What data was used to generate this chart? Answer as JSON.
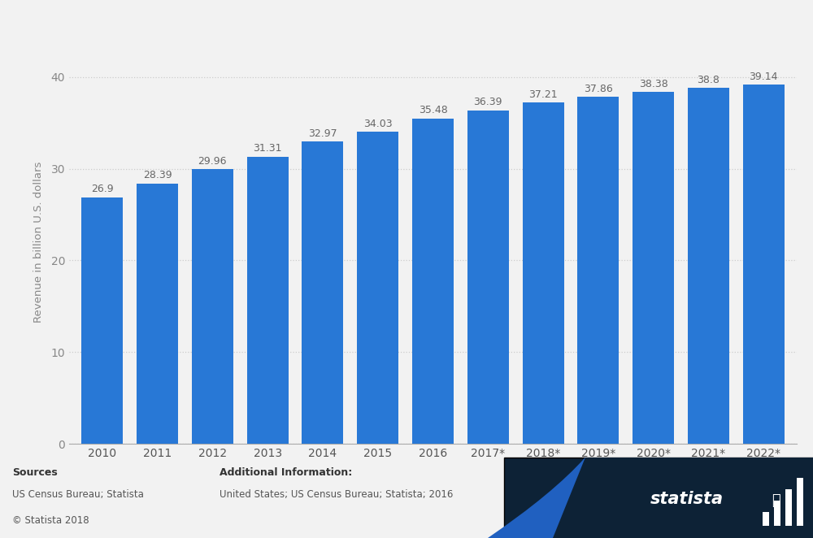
{
  "categories": [
    "2010",
    "2011",
    "2012",
    "2013",
    "2014",
    "2015",
    "2016",
    "2017*",
    "2018*",
    "2019*",
    "2020*",
    "2021*",
    "2022*"
  ],
  "values": [
    26.9,
    28.39,
    29.96,
    31.31,
    32.97,
    34.03,
    35.48,
    36.39,
    37.21,
    37.86,
    38.38,
    38.8,
    39.14
  ],
  "bar_color": "#2878d6",
  "background_color": "#f2f2f2",
  "plot_bg_color": "#f2f2f2",
  "ylabel": "Revenue in billion U.S. dollars",
  "yticks": [
    0,
    10,
    20,
    30,
    40
  ],
  "ylim": [
    0,
    44
  ],
  "grid_color": "#cccccc",
  "value_label_color": "#666666",
  "axis_label_color": "#888888",
  "footer_dark_color": "#0d2236",
  "footer_wave_color": "#2060c0"
}
